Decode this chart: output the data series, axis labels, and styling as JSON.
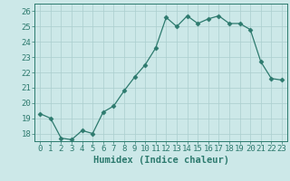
{
  "x": [
    0,
    1,
    2,
    3,
    4,
    5,
    6,
    7,
    8,
    9,
    10,
    11,
    12,
    13,
    14,
    15,
    16,
    17,
    18,
    19,
    20,
    21,
    22,
    23
  ],
  "y": [
    19.3,
    19.0,
    17.7,
    17.6,
    18.2,
    18.0,
    19.4,
    19.8,
    20.8,
    21.7,
    22.5,
    23.6,
    25.6,
    25.0,
    25.7,
    25.2,
    25.5,
    25.7,
    25.2,
    25.2,
    24.8,
    22.7,
    21.6,
    21.5
  ],
  "line_color": "#2d7a6e",
  "marker": "D",
  "marker_size": 2.5,
  "bg_color": "#cce8e8",
  "grid_color": "#aacece",
  "axis_color": "#2d7a6e",
  "xlabel": "Humidex (Indice chaleur)",
  "ylim": [
    17.5,
    26.5
  ],
  "xlim": [
    -0.5,
    23.5
  ],
  "yticks": [
    18,
    19,
    20,
    21,
    22,
    23,
    24,
    25,
    26
  ],
  "xticks": [
    0,
    1,
    2,
    3,
    4,
    5,
    6,
    7,
    8,
    9,
    10,
    11,
    12,
    13,
    14,
    15,
    16,
    17,
    18,
    19,
    20,
    21,
    22,
    23
  ],
  "font_size_label": 7.5,
  "font_size_tick": 6.5
}
